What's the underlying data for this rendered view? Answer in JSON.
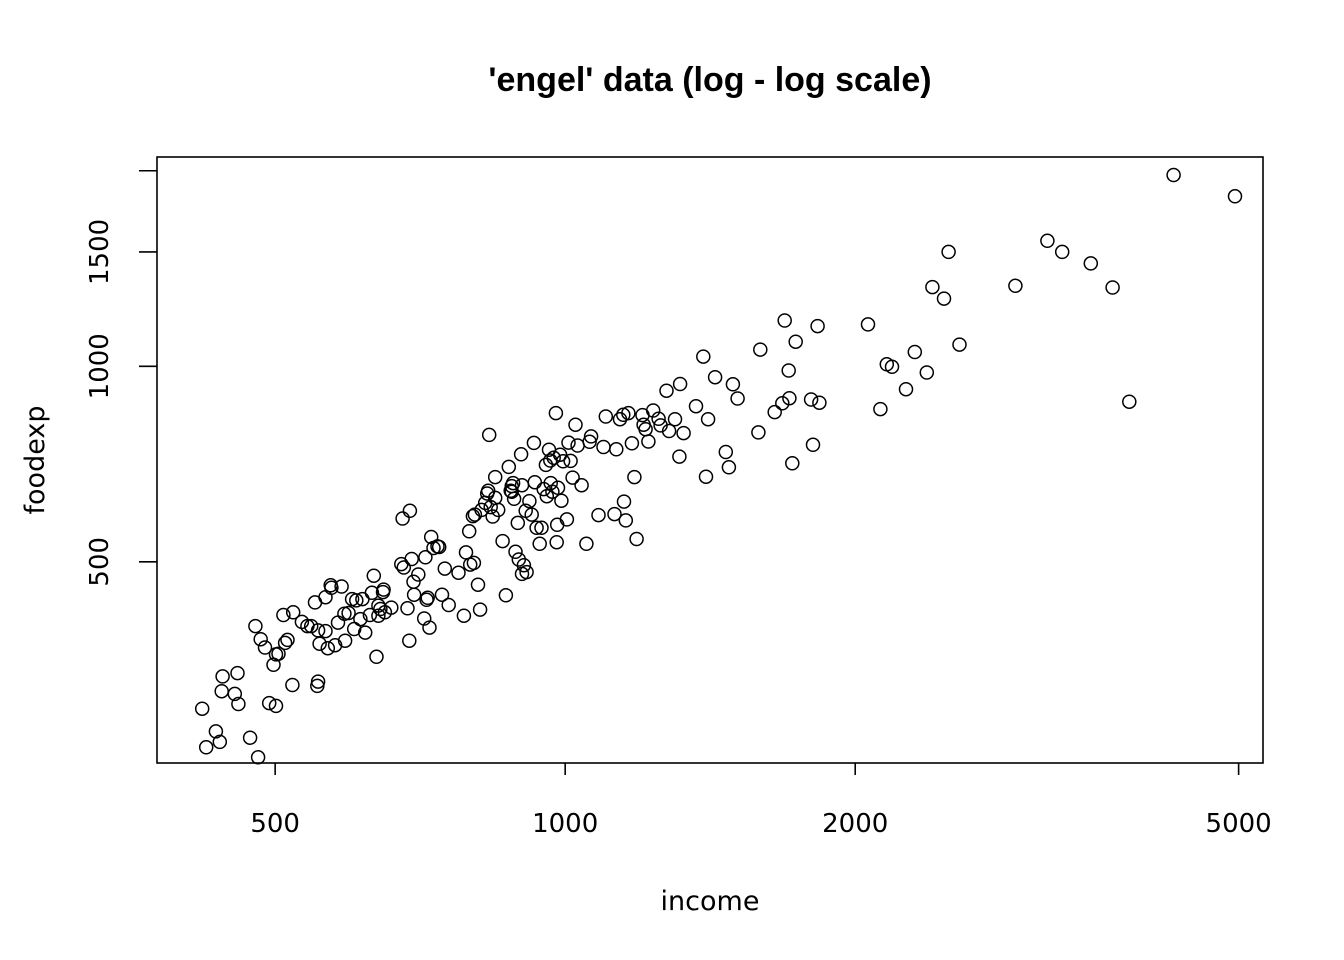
{
  "chart_data": {
    "type": "scatter",
    "title": "'engel' data (log - log scale)",
    "xlabel": "income",
    "ylabel": "foodexp",
    "log_x": true,
    "log_y": true,
    "xlim": [
      377,
      5300
    ],
    "ylim": [
      245,
      2100
    ],
    "x_ticks": [
      500,
      1000,
      2000,
      5000
    ],
    "x_tick_labels": [
      "500",
      "1000",
      "2000",
      "5000"
    ],
    "y_ticks": [
      500,
      1000,
      1500,
      2000
    ],
    "y_tick_labels": [
      "500",
      "1000",
      "1500",
      ""
    ],
    "grid": false,
    "legend": "none",
    "points": [
      [
        420,
        297
      ],
      [
        424,
        259
      ],
      [
        434,
        274
      ],
      [
        438,
        264
      ],
      [
        441,
        333
      ],
      [
        440,
        316
      ],
      [
        454,
        313
      ],
      [
        457,
        337
      ],
      [
        458,
        302
      ],
      [
        471,
        268
      ],
      [
        477,
        398
      ],
      [
        480,
        250
      ],
      [
        483,
        380
      ],
      [
        488,
        369
      ],
      [
        493,
        303
      ],
      [
        498,
        347
      ],
      [
        501,
        360
      ],
      [
        501,
        300
      ],
      [
        510,
        414
      ],
      [
        504,
        361
      ],
      [
        512,
        375
      ],
      [
        515,
        379
      ],
      [
        521,
        323
      ],
      [
        522,
        418
      ],
      [
        533,
        404
      ],
      [
        540,
        398
      ],
      [
        545,
        398
      ],
      [
        550,
        433
      ],
      [
        553,
        322
      ],
      [
        554,
        327
      ],
      [
        554,
        392
      ],
      [
        556,
        374
      ],
      [
        564,
        391
      ],
      [
        564,
        441
      ],
      [
        567,
        368
      ],
      [
        571,
        460
      ],
      [
        572,
        456
      ],
      [
        577,
        372
      ],
      [
        581,
        403
      ],
      [
        586,
        458
      ],
      [
        590,
        416
      ],
      [
        591,
        378
      ],
      [
        596,
        417
      ],
      [
        601,
        438
      ],
      [
        604,
        394
      ],
      [
        607,
        436
      ],
      [
        613,
        408
      ],
      [
        616,
        438
      ],
      [
        620,
        389
      ],
      [
        627,
        414
      ],
      [
        630,
        448
      ],
      [
        633,
        476
      ],
      [
        637,
        357
      ],
      [
        640,
        428
      ],
      [
        640,
        413
      ],
      [
        643,
        423
      ],
      [
        648,
        453
      ],
      [
        647,
        449
      ],
      [
        650,
        418
      ],
      [
        660,
        425
      ],
      [
        676,
        496
      ],
      [
        678,
        583
      ],
      [
        680,
        490
      ],
      [
        686,
        424
      ],
      [
        689,
        378
      ],
      [
        690,
        599
      ],
      [
        693,
        505
      ],
      [
        696,
        466
      ],
      [
        697,
        445
      ],
      [
        704,
        478
      ],
      [
        714,
        409
      ],
      [
        716,
        508
      ],
      [
        718,
        437
      ],
      [
        720,
        440
      ],
      [
        723,
        396
      ],
      [
        726,
        546
      ],
      [
        730,
        525
      ],
      [
        737,
        528
      ],
      [
        740,
        527
      ],
      [
        745,
        445
      ],
      [
        750,
        488
      ],
      [
        757,
        429
      ],
      [
        775,
        481
      ],
      [
        785,
        413
      ],
      [
        789,
        517
      ],
      [
        795,
        557
      ],
      [
        797,
        495
      ],
      [
        802,
        588
      ],
      [
        806,
        591
      ],
      [
        804,
        498
      ],
      [
        812,
        461
      ],
      [
        816,
        422
      ],
      [
        819,
        601
      ],
      [
        826,
        616
      ],
      [
        830,
        637
      ],
      [
        832,
        643
      ],
      [
        834,
        784
      ],
      [
        837,
        607
      ],
      [
        841,
        587
      ],
      [
        846,
        627
      ],
      [
        846,
        675
      ],
      [
        852,
        601
      ],
      [
        861,
        538
      ],
      [
        868,
        444
      ],
      [
        874,
        700
      ],
      [
        878,
        643
      ],
      [
        880,
        641
      ],
      [
        880,
        654
      ],
      [
        883,
        661
      ],
      [
        885,
        625
      ],
      [
        888,
        518
      ],
      [
        893,
        574
      ],
      [
        895,
        504
      ],
      [
        900,
        732
      ],
      [
        902,
        656
      ],
      [
        902,
        479
      ],
      [
        906,
        494
      ],
      [
        910,
        599
      ],
      [
        912,
        482
      ],
      [
        918,
        620
      ],
      [
        923,
        591
      ],
      [
        928,
        762
      ],
      [
        930,
        663
      ],
      [
        934,
        564
      ],
      [
        941,
        533
      ],
      [
        945,
        564
      ],
      [
        950,
        647
      ],
      [
        955,
        705
      ],
      [
        957,
        631
      ],
      [
        962,
        744
      ],
      [
        965,
        716
      ],
      [
        966,
        661
      ],
      [
        970,
        641
      ],
      [
        973,
        723
      ],
      [
        978,
        847
      ],
      [
        980,
        536
      ],
      [
        981,
        570
      ],
      [
        983,
        650
      ],
      [
        988,
        731
      ],
      [
        991,
        621
      ],
      [
        995,
        714
      ],
      [
        1004,
        581
      ],
      [
        1008,
        763
      ],
      [
        1013,
        715
      ],
      [
        1018,
        674
      ],
      [
        1025,
        813
      ],
      [
        1030,
        755
      ],
      [
        1040,
        656
      ],
      [
        1052,
        533
      ],
      [
        1060,
        765
      ],
      [
        1064,
        780
      ],
      [
        1083,
        590
      ],
      [
        1096,
        751
      ],
      [
        1102,
        837
      ],
      [
        1125,
        592
      ],
      [
        1130,
        745
      ],
      [
        1140,
        829
      ],
      [
        1149,
        842
      ],
      [
        1151,
        619
      ],
      [
        1156,
        579
      ],
      [
        1163,
        847
      ],
      [
        1173,
        761
      ],
      [
        1180,
        675
      ],
      [
        1186,
        542
      ],
      [
        1203,
        841
      ],
      [
        1206,
        813
      ],
      [
        1212,
        800
      ],
      [
        1220,
        766
      ],
      [
        1234,
        855
      ],
      [
        1250,
        830
      ],
      [
        1256,
        811
      ],
      [
        1274,
        917
      ],
      [
        1282,
        795
      ],
      [
        1300,
        829
      ],
      [
        1314,
        726
      ],
      [
        1316,
        939
      ],
      [
        1327,
        789
      ],
      [
        1367,
        868
      ],
      [
        1391,
        1035
      ],
      [
        1400,
        676
      ],
      [
        1407,
        829
      ],
      [
        1431,
        962
      ],
      [
        1468,
        738
      ],
      [
        1479,
        699
      ],
      [
        1493,
        938
      ],
      [
        1510,
        892
      ],
      [
        1587,
        791
      ],
      [
        1594,
        1061
      ],
      [
        1650,
        850
      ],
      [
        1680,
        877
      ],
      [
        1690,
        1176
      ],
      [
        1706,
        985
      ],
      [
        1709,
        893
      ],
      [
        1721,
        709
      ],
      [
        1735,
        1091
      ],
      [
        1800,
        889
      ],
      [
        1808,
        757
      ],
      [
        1828,
        1153
      ],
      [
        1836,
        879
      ],
      [
        2062,
        1160
      ],
      [
        2124,
        859
      ],
      [
        2157,
        1007
      ],
      [
        2184,
        998
      ],
      [
        2258,
        922
      ],
      [
        2306,
        1052
      ],
      [
        2373,
        978
      ],
      [
        2405,
        1324
      ],
      [
        2473,
        1271
      ],
      [
        2500,
        1500
      ],
      [
        2566,
        1080
      ],
      [
        2933,
        1330
      ],
      [
        3166,
        1560
      ],
      [
        3280,
        1500
      ],
      [
        3512,
        1440
      ],
      [
        3700,
        1322
      ],
      [
        3850,
        882
      ],
      [
        4280,
        1970
      ],
      [
        4957,
        1827
      ]
    ]
  }
}
